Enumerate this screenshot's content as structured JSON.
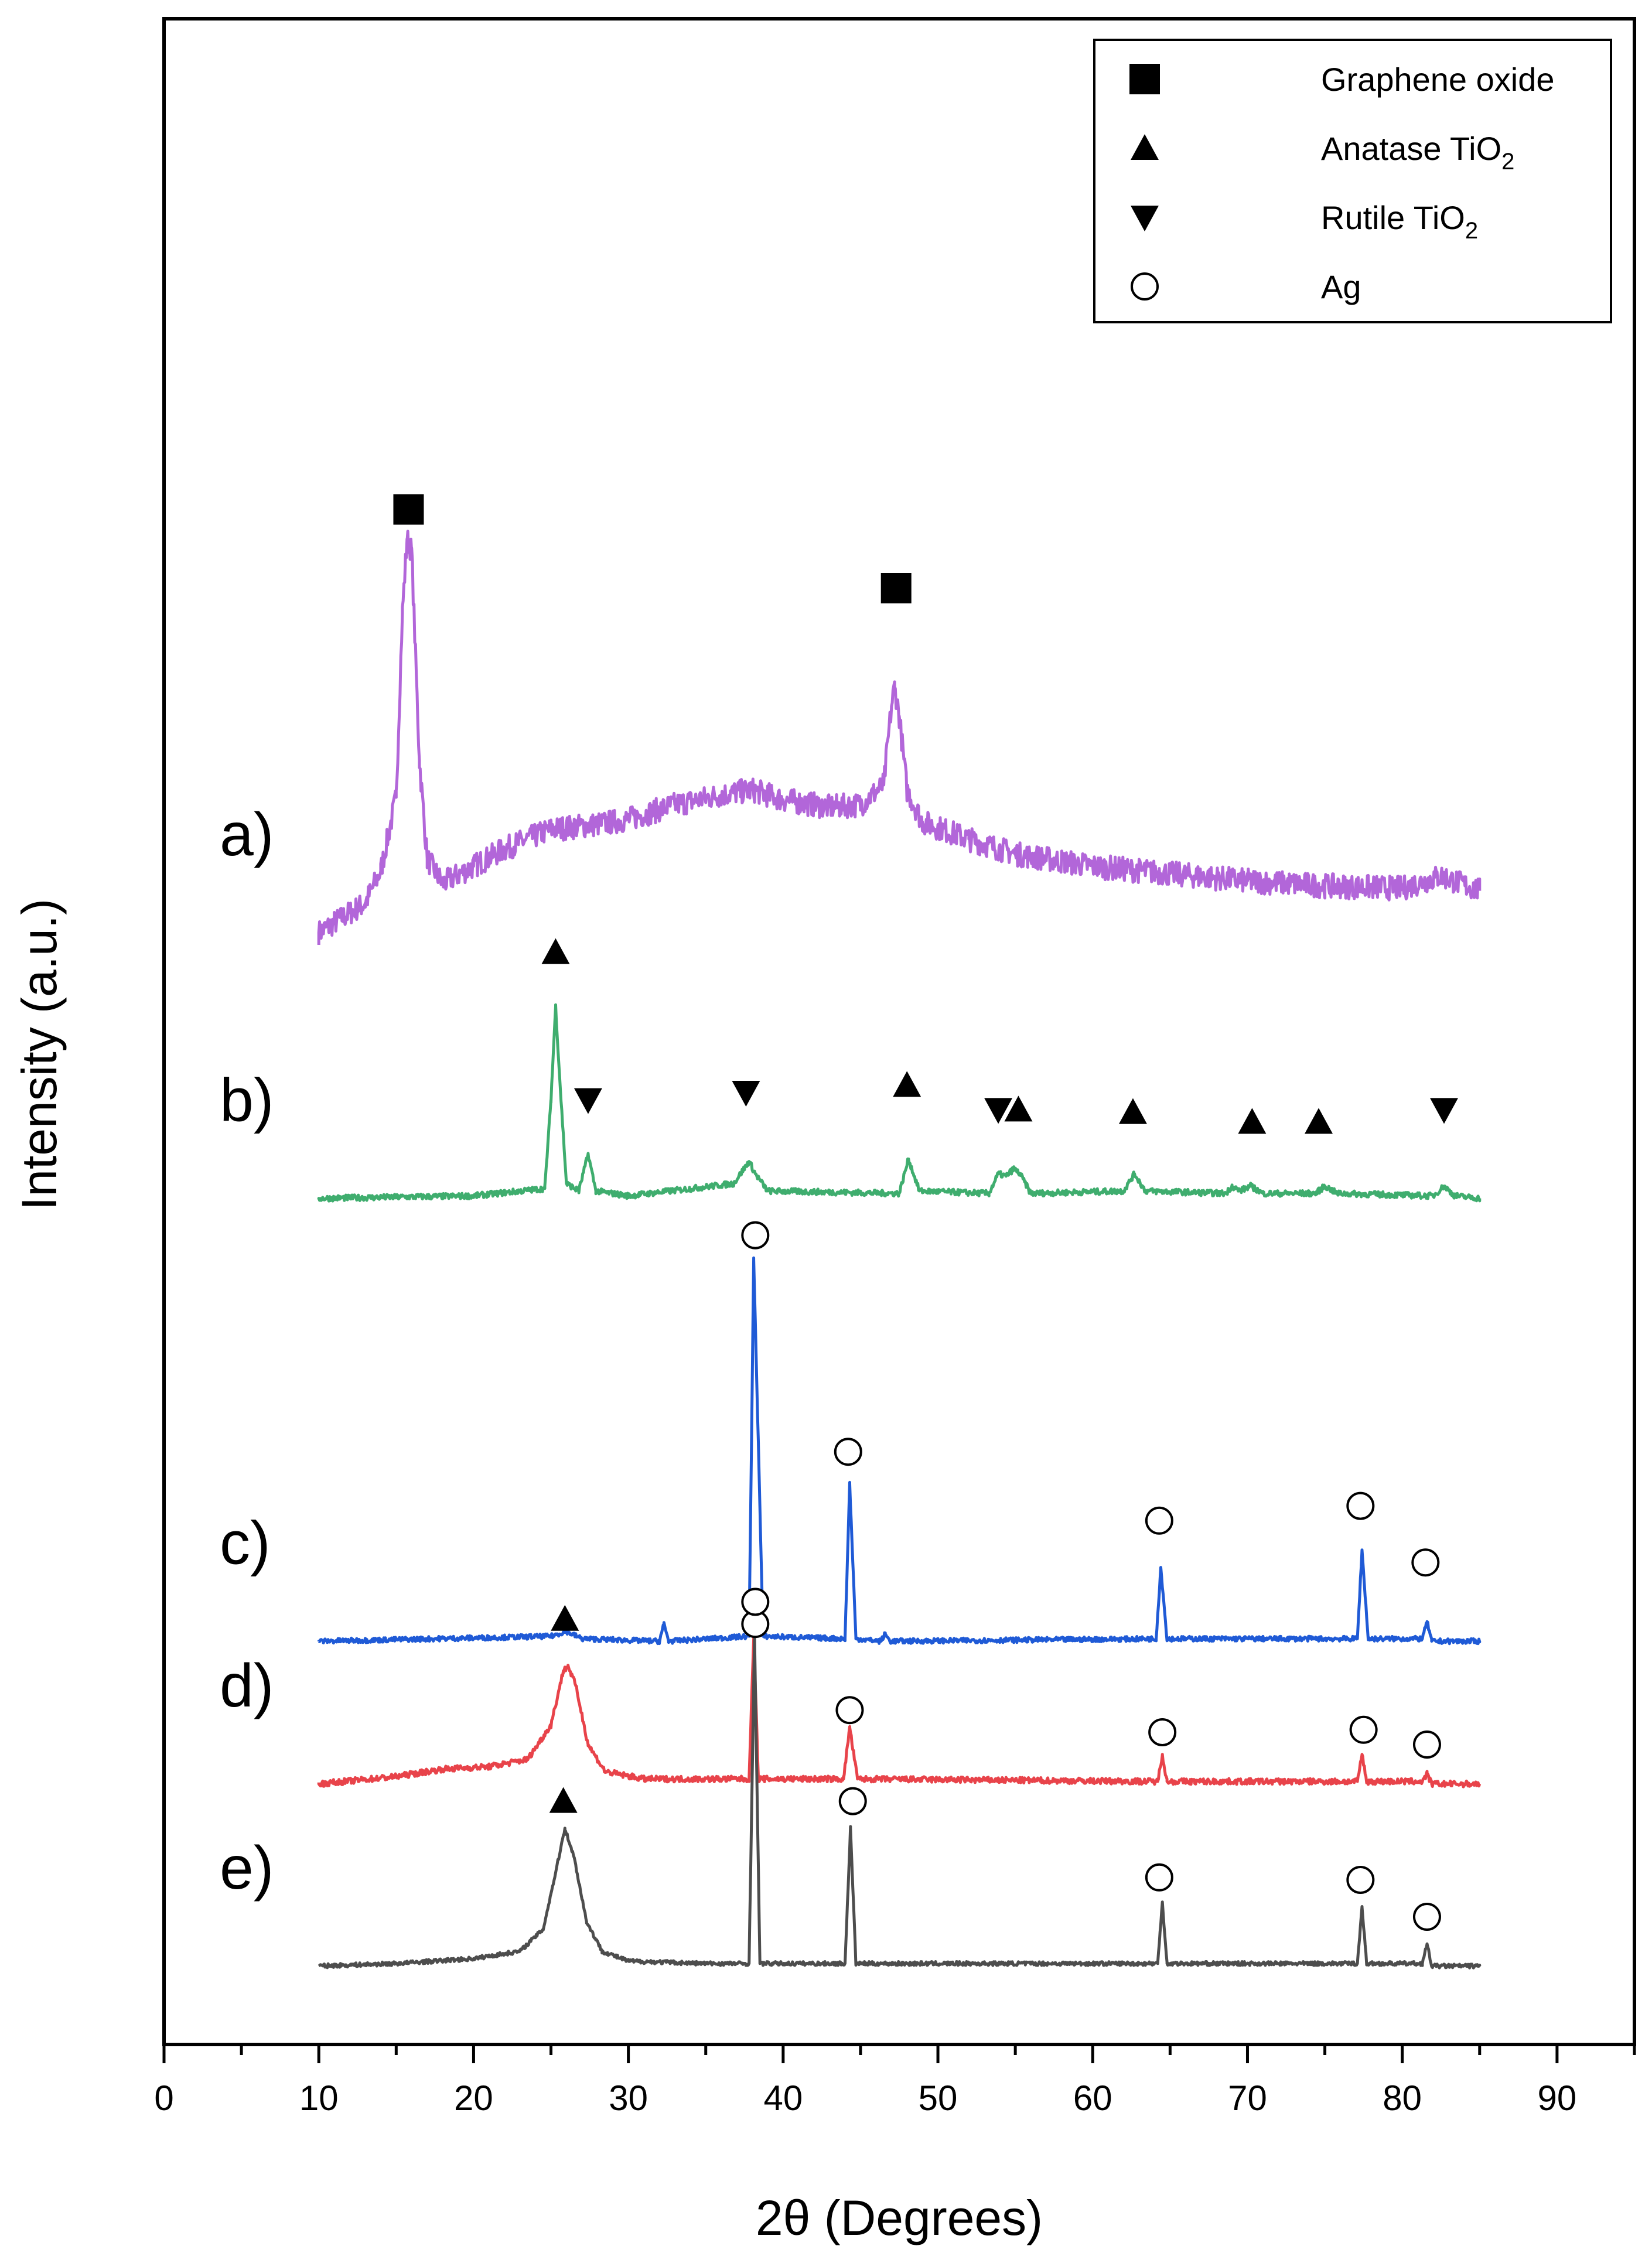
{
  "chart_data": {
    "type": "line",
    "title": "",
    "xlabel": "2θ (Degrees)",
    "ylabel": "Intensity (a.u.)",
    "xlim": [
      0,
      95
    ],
    "xticks": [
      0,
      10,
      20,
      30,
      40,
      50,
      60,
      70,
      80,
      90
    ],
    "grid": false,
    "legend": {
      "position": "top-right",
      "entries": [
        {
          "name": "Graphene oxide",
          "marker": "square",
          "sub": ""
        },
        {
          "name": "Anatase TiO",
          "marker": "triangle-up",
          "sub": "2"
        },
        {
          "name": "Rutile TiO",
          "marker": "triangle-down",
          "sub": "2"
        },
        {
          "name": "Ag",
          "marker": "circle-open",
          "sub": ""
        }
      ]
    },
    "series": [
      {
        "name": "a)",
        "color": "#b266d9",
        "offset": 4.2,
        "x": [
          10,
          11,
          12,
          13,
          14,
          15,
          15.4,
          15.7,
          16,
          16.5,
          17,
          18,
          20,
          22,
          25,
          28,
          30,
          33,
          36,
          38,
          40,
          43,
          45,
          46.5,
          47,
          47.2,
          47.5,
          48,
          49,
          52,
          55,
          60,
          65,
          70,
          75,
          80,
          82.5,
          85
        ],
        "values": [
          0.0,
          0.04,
          0.08,
          0.12,
          0.25,
          0.55,
          1.3,
          1.6,
          1.55,
          0.7,
          0.3,
          0.2,
          0.27,
          0.34,
          0.42,
          0.44,
          0.46,
          0.52,
          0.56,
          0.58,
          0.54,
          0.51,
          0.52,
          0.6,
          0.92,
          1.0,
          0.88,
          0.58,
          0.45,
          0.38,
          0.32,
          0.27,
          0.24,
          0.21,
          0.19,
          0.18,
          0.23,
          0.17
        ],
        "noise": 0.05
      },
      {
        "name": "b)",
        "color": "#3fad6e",
        "offset": 3.12,
        "x": [
          10,
          20,
          24.6,
          25.0,
          25.3,
          25.6,
          26.0,
          26.8,
          27.4,
          27.9,
          30,
          36.8,
          37.8,
          38.2,
          39,
          47.5,
          48.1,
          48.8,
          53.3,
          53.9,
          54.4,
          54.9,
          55.3,
          56,
          62,
          62.7,
          63.4,
          68.6,
          69.0,
          69.5,
          70.2,
          71,
          74.4,
          75.0,
          75.8,
          82.0,
          82.7,
          83.4,
          85
        ],
        "values": [
          0.0,
          0.01,
          0.04,
          0.4,
          0.78,
          0.45,
          0.06,
          0.03,
          0.18,
          0.03,
          0.01,
          0.06,
          0.15,
          0.1,
          0.03,
          0.02,
          0.16,
          0.03,
          0.02,
          0.1,
          0.09,
          0.12,
          0.1,
          0.02,
          0.03,
          0.1,
          0.03,
          0.02,
          0.05,
          0.03,
          0.05,
          0.02,
          0.02,
          0.05,
          0.02,
          0.01,
          0.05,
          0.01,
          0.0
        ],
        "noise": 0.012
      },
      {
        "name": "c)",
        "color": "#1f5ad6",
        "offset": 1.32,
        "x": [
          10,
          25,
          26,
          27,
          32.0,
          32.3,
          32.6,
          37.8,
          38.1,
          38.4,
          38.7,
          44.0,
          44.3,
          44.7,
          46.3,
          46.6,
          46.9,
          64.1,
          64.4,
          64.8,
          77.1,
          77.4,
          77.8,
          81.3,
          81.6,
          81.9,
          85
        ],
        "values": [
          0.0,
          0.02,
          0.04,
          0.01,
          0.0,
          0.07,
          0.0,
          0.02,
          1.55,
          0.8,
          0.02,
          0.01,
          0.64,
          0.01,
          0.0,
          0.03,
          0.0,
          0.01,
          0.3,
          0.01,
          0.01,
          0.37,
          0.01,
          0.01,
          0.08,
          0.0,
          0.0
        ],
        "noise": 0.01
      },
      {
        "name": "d)",
        "color": "#e8434a",
        "offset": 0.74,
        "x": [
          10,
          15,
          18,
          21,
          23.5,
          25.0,
          25.8,
          26.1,
          26.6,
          27.4,
          28.5,
          31,
          37.8,
          38.1,
          38.4,
          43.9,
          44.3,
          44.8,
          64.2,
          64.5,
          64.8,
          77.1,
          77.4,
          77.7,
          81.3,
          81.6,
          81.9,
          85
        ],
        "values": [
          0.0,
          0.03,
          0.06,
          0.07,
          0.1,
          0.24,
          0.46,
          0.48,
          0.4,
          0.16,
          0.05,
          0.02,
          0.02,
          0.6,
          0.02,
          0.02,
          0.23,
          0.02,
          0.01,
          0.12,
          0.01,
          0.01,
          0.12,
          0.01,
          0.01,
          0.04,
          0.0,
          0.0
        ],
        "noise": 0.012
      },
      {
        "name": "e)",
        "color": "#4d4d4d",
        "offset": 0.0,
        "x": [
          10,
          15,
          20,
          23,
          24.5,
          25.3,
          25.9,
          26.5,
          27.3,
          28.3,
          30,
          35,
          37.8,
          38.15,
          38.5,
          44.0,
          44.35,
          44.7,
          64.2,
          64.5,
          64.8,
          77.1,
          77.4,
          77.7,
          81.3,
          81.6,
          81.9,
          85
        ],
        "values": [
          0.0,
          0.01,
          0.03,
          0.06,
          0.15,
          0.38,
          0.56,
          0.44,
          0.18,
          0.06,
          0.02,
          0.01,
          0.01,
          1.34,
          0.01,
          0.01,
          0.56,
          0.01,
          0.01,
          0.26,
          0.01,
          0.01,
          0.24,
          0.01,
          0.01,
          0.09,
          0.0,
          0.0
        ],
        "noise": 0.008
      }
    ],
    "peak_markers": [
      {
        "trace": "a)",
        "symbol": "square",
        "x": 15.8,
        "y": 5.92
      },
      {
        "trace": "a)",
        "symbol": "square",
        "x": 47.3,
        "y": 5.6
      },
      {
        "trace": "b)",
        "symbol": "triangle-up",
        "x": 25.3,
        "y": 4.12
      },
      {
        "trace": "b)",
        "symbol": "triangle-down",
        "x": 27.4,
        "y": 3.52
      },
      {
        "trace": "b)",
        "symbol": "triangle-down",
        "x": 37.6,
        "y": 3.55
      },
      {
        "trace": "b)",
        "symbol": "triangle-up",
        "x": 48.0,
        "y": 3.58
      },
      {
        "trace": "b)",
        "symbol": "triangle-down",
        "x": 53.9,
        "y": 3.48
      },
      {
        "trace": "b)",
        "symbol": "triangle-up",
        "x": 55.2,
        "y": 3.48
      },
      {
        "trace": "b)",
        "symbol": "triangle-up",
        "x": 62.6,
        "y": 3.47
      },
      {
        "trace": "b)",
        "symbol": "triangle-up",
        "x": 70.3,
        "y": 3.43
      },
      {
        "trace": "b)",
        "symbol": "triangle-up",
        "x": 74.6,
        "y": 3.43
      },
      {
        "trace": "b)",
        "symbol": "triangle-down",
        "x": 82.7,
        "y": 3.48
      },
      {
        "trace": "c)",
        "symbol": "circle-open",
        "x": 38.2,
        "y": 2.97
      },
      {
        "trace": "c)",
        "symbol": "circle-open",
        "x": 44.2,
        "y": 2.09
      },
      {
        "trace": "c)",
        "symbol": "circle-open",
        "x": 64.3,
        "y": 1.81
      },
      {
        "trace": "c)",
        "symbol": "circle-open",
        "x": 77.3,
        "y": 1.87
      },
      {
        "trace": "c)",
        "symbol": "circle-open",
        "x": 81.5,
        "y": 1.64
      },
      {
        "trace": "d)",
        "symbol": "triangle-up",
        "x": 25.9,
        "y": 1.41
      },
      {
        "trace": "d)",
        "symbol": "circle-open",
        "x": 38.2,
        "y": 1.39
      },
      {
        "trace": "d)",
        "symbol": "circle-open",
        "x": 44.3,
        "y": 1.04
      },
      {
        "trace": "d)",
        "symbol": "circle-open",
        "x": 64.5,
        "y": 0.95
      },
      {
        "trace": "d)",
        "symbol": "circle-open",
        "x": 77.5,
        "y": 0.96
      },
      {
        "trace": "d)",
        "symbol": "circle-open",
        "x": 81.6,
        "y": 0.9
      },
      {
        "trace": "e)",
        "symbol": "triangle-up",
        "x": 25.8,
        "y": 0.67
      },
      {
        "trace": "e)",
        "symbol": "circle-open",
        "x": 38.2,
        "y": 1.48
      },
      {
        "trace": "e)",
        "symbol": "circle-open",
        "x": 44.5,
        "y": 0.67
      },
      {
        "trace": "e)",
        "symbol": "circle-open",
        "x": 64.3,
        "y": 0.36
      },
      {
        "trace": "e)",
        "symbol": "circle-open",
        "x": 77.3,
        "y": 0.35
      },
      {
        "trace": "e)",
        "symbol": "circle-open",
        "x": 81.6,
        "y": 0.2
      }
    ]
  }
}
